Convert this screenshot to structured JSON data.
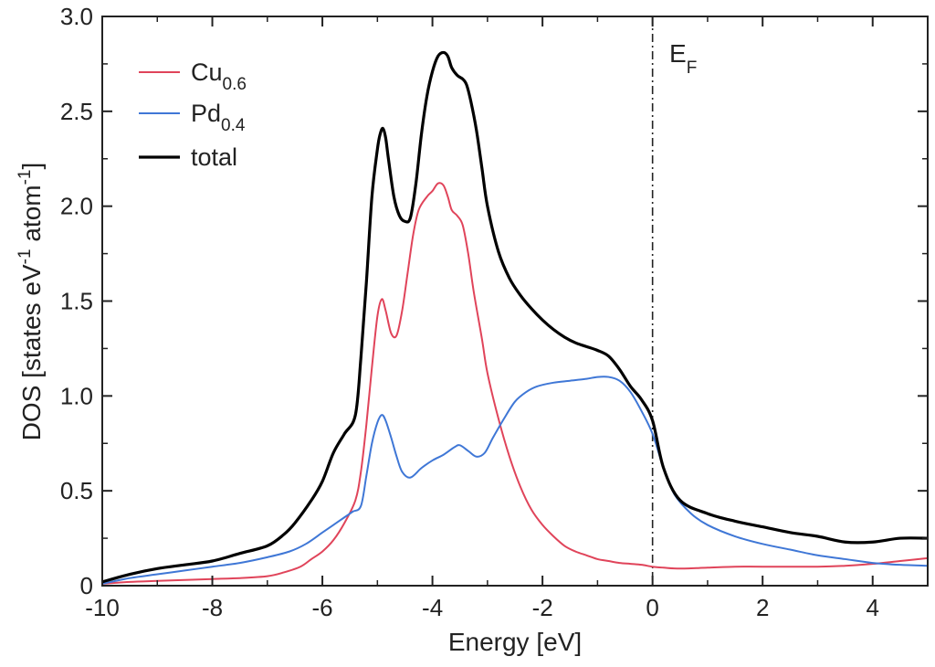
{
  "chart_data": {
    "type": "line",
    "xlabel": "Energy [eV]",
    "ylabel": "DOS [states eV-1 atom-1]",
    "ylabel_parts": {
      "base": "DOS [states eV",
      "exp1": "-1",
      "mid": " atom",
      "exp2": "-1",
      "end": "]"
    },
    "xlim": [
      -10,
      5
    ],
    "ylim": [
      0,
      3.0
    ],
    "xticks": [
      -10,
      -8,
      -6,
      -4,
      -2,
      0,
      2,
      4
    ],
    "xtick_labels": [
      "-10",
      "-8",
      "-6",
      "-4",
      "-2",
      "0",
      "2",
      "4"
    ],
    "yticks": [
      0,
      0.5,
      1.0,
      1.5,
      2.0,
      2.5,
      3.0
    ],
    "ytick_labels": [
      "0",
      "0.5",
      "1.0",
      "1.5",
      "2.0",
      "2.5",
      "3.0"
    ],
    "legend_position": "top-left",
    "fermi": {
      "x": 0,
      "label_base": "E",
      "label_sub": "F"
    },
    "series": [
      {
        "name": "Cu0.6",
        "label_base": "Cu",
        "label_sub": "0.6",
        "color": "#e0445a",
        "x": [
          -10,
          -9.5,
          -9,
          -8.5,
          -8,
          -7.5,
          -7,
          -6.7,
          -6.4,
          -6.2,
          -6.0,
          -5.8,
          -5.6,
          -5.4,
          -5.3,
          -5.2,
          -5.1,
          -5.0,
          -4.92,
          -4.85,
          -4.75,
          -4.65,
          -4.55,
          -4.45,
          -4.35,
          -4.25,
          -4.1,
          -4.0,
          -3.9,
          -3.8,
          -3.72,
          -3.65,
          -3.55,
          -3.45,
          -3.35,
          -3.25,
          -3.1,
          -3.0,
          -2.8,
          -2.6,
          -2.4,
          -2.2,
          -2.0,
          -1.8,
          -1.6,
          -1.4,
          -1.2,
          -1.0,
          -0.8,
          -0.6,
          -0.4,
          -0.2,
          0,
          0.2,
          0.5,
          1.0,
          1.5,
          2.0,
          3.0,
          3.5,
          4.0,
          4.5,
          5.0
        ],
        "y": [
          0.01,
          0.02,
          0.025,
          0.03,
          0.035,
          0.04,
          0.05,
          0.07,
          0.1,
          0.14,
          0.18,
          0.24,
          0.33,
          0.45,
          0.6,
          0.85,
          1.15,
          1.42,
          1.51,
          1.45,
          1.33,
          1.32,
          1.45,
          1.65,
          1.85,
          1.98,
          2.05,
          2.08,
          2.12,
          2.11,
          2.05,
          1.98,
          1.95,
          1.9,
          1.75,
          1.55,
          1.3,
          1.12,
          0.88,
          0.68,
          0.52,
          0.4,
          0.32,
          0.26,
          0.21,
          0.18,
          0.16,
          0.14,
          0.13,
          0.12,
          0.115,
          0.11,
          0.1,
          0.095,
          0.09,
          0.095,
          0.1,
          0.1,
          0.1,
          0.105,
          0.115,
          0.13,
          0.145
        ]
      },
      {
        "name": "Pd0.4",
        "label_base": "Pd",
        "label_sub": "0.4",
        "color": "#3f77d6",
        "x": [
          -10,
          -9.5,
          -9,
          -8.5,
          -8,
          -7.5,
          -7,
          -6.6,
          -6.3,
          -6.0,
          -5.8,
          -5.6,
          -5.45,
          -5.3,
          -5.2,
          -5.1,
          -5.0,
          -4.92,
          -4.85,
          -4.75,
          -4.65,
          -4.55,
          -4.4,
          -4.2,
          -4.0,
          -3.8,
          -3.6,
          -3.5,
          -3.35,
          -3.2,
          -3.05,
          -2.9,
          -2.7,
          -2.5,
          -2.3,
          -2.1,
          -1.8,
          -1.5,
          -1.2,
          -1.0,
          -0.8,
          -0.6,
          -0.4,
          -0.2,
          0,
          0.2,
          0.4,
          0.7,
          1.0,
          1.5,
          2.0,
          2.5,
          3.0,
          3.5,
          4.0,
          4.5,
          5.0
        ],
        "y": [
          0.01,
          0.04,
          0.06,
          0.08,
          0.1,
          0.12,
          0.15,
          0.18,
          0.22,
          0.28,
          0.32,
          0.36,
          0.39,
          0.42,
          0.58,
          0.75,
          0.86,
          0.9,
          0.87,
          0.78,
          0.68,
          0.6,
          0.57,
          0.62,
          0.66,
          0.69,
          0.73,
          0.74,
          0.71,
          0.68,
          0.7,
          0.78,
          0.88,
          0.97,
          1.02,
          1.05,
          1.07,
          1.08,
          1.09,
          1.1,
          1.1,
          1.08,
          1.02,
          0.92,
          0.8,
          0.62,
          0.48,
          0.38,
          0.32,
          0.26,
          0.22,
          0.19,
          0.16,
          0.14,
          0.12,
          0.11,
          0.105
        ]
      },
      {
        "name": "total",
        "label_base": "total",
        "label_sub": "",
        "color": "#000000",
        "x": [
          -10,
          -9.5,
          -9,
          -8.5,
          -8,
          -7.5,
          -7,
          -6.7,
          -6.5,
          -6.2,
          -6.0,
          -5.8,
          -5.6,
          -5.4,
          -5.3,
          -5.2,
          -5.1,
          -5.0,
          -4.95,
          -4.9,
          -4.85,
          -4.8,
          -4.7,
          -4.6,
          -4.5,
          -4.4,
          -4.3,
          -4.2,
          -4.1,
          -4.0,
          -3.9,
          -3.8,
          -3.72,
          -3.65,
          -3.55,
          -3.45,
          -3.38,
          -3.3,
          -3.2,
          -3.1,
          -3.0,
          -2.8,
          -2.6,
          -2.4,
          -2.2,
          -2.0,
          -1.8,
          -1.6,
          -1.4,
          -1.2,
          -1.0,
          -0.8,
          -0.6,
          -0.4,
          -0.2,
          0,
          0.2,
          0.5,
          1.0,
          1.5,
          2.0,
          2.5,
          3.0,
          3.5,
          4.0,
          4.5,
          5.0
        ],
        "y": [
          0.02,
          0.06,
          0.09,
          0.11,
          0.13,
          0.17,
          0.21,
          0.27,
          0.33,
          0.45,
          0.55,
          0.7,
          0.8,
          0.9,
          1.2,
          1.6,
          2.05,
          2.3,
          2.38,
          2.41,
          2.36,
          2.25,
          2.05,
          1.95,
          1.92,
          1.94,
          2.12,
          2.38,
          2.58,
          2.71,
          2.79,
          2.81,
          2.79,
          2.73,
          2.69,
          2.67,
          2.64,
          2.55,
          2.4,
          2.2,
          2.0,
          1.76,
          1.62,
          1.53,
          1.46,
          1.4,
          1.35,
          1.31,
          1.28,
          1.26,
          1.24,
          1.21,
          1.14,
          1.05,
          0.98,
          0.87,
          0.62,
          0.45,
          0.38,
          0.34,
          0.31,
          0.28,
          0.26,
          0.23,
          0.23,
          0.25,
          0.25
        ]
      }
    ]
  }
}
